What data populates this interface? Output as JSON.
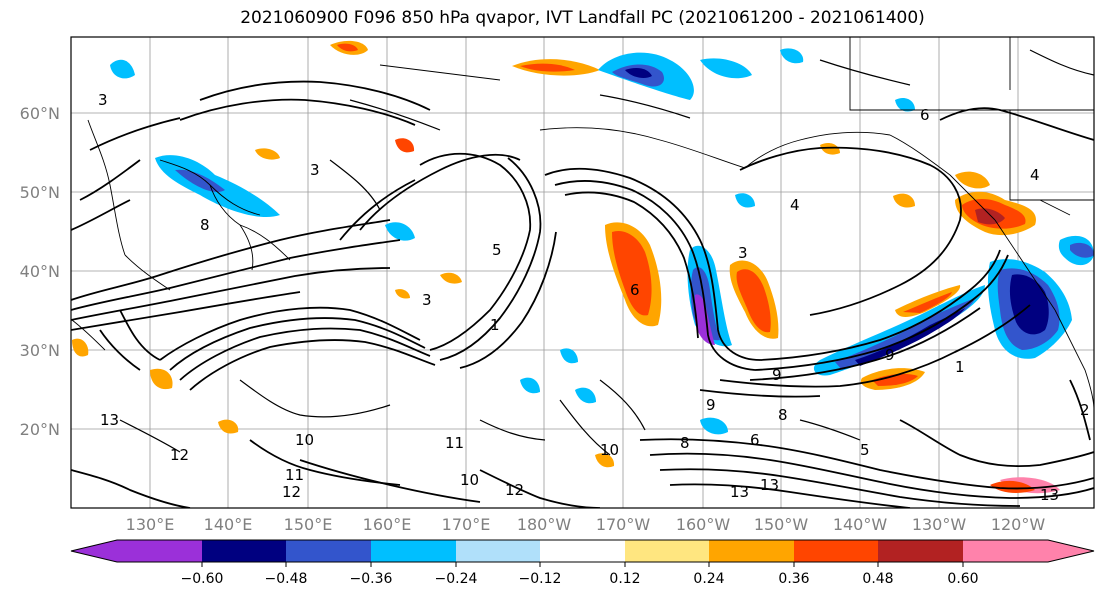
{
  "title": "2021060900 F096 850 hPa qvapor, IVT Landfall PC (2021061200 - 2021061400)",
  "lat_labels": [
    "60°N",
    "50°N",
    "40°N",
    "30°N",
    "20°N"
  ],
  "lon_labels": [
    "130°E",
    "140°E",
    "150°E",
    "160°E",
    "170°E",
    "180°W",
    "170°W",
    "160°W",
    "150°W",
    "140°W",
    "130°W",
    "120°W"
  ],
  "colorbar": {
    "tick_labels": [
      "−0.60",
      "−0.48",
      "−0.36",
      "−0.24",
      "−0.12",
      "0.12",
      "0.24",
      "0.36",
      "0.48",
      "0.60"
    ],
    "colors": [
      "#9b30d9",
      "#000080",
      "#3355cc",
      "#00bfff",
      "#b0e0fa",
      "#ffffff",
      "#ffe680",
      "#ffa500",
      "#ff4500",
      "#b22222",
      "#ff82ab"
    ]
  },
  "contour_labels": [
    "3",
    "3",
    "3",
    "5",
    "6",
    "1",
    "8",
    "4",
    "3",
    "9",
    "9",
    "8",
    "9",
    "12",
    "13",
    "10",
    "11",
    "10",
    "12",
    "11",
    "13",
    "13",
    "13",
    "12",
    "10",
    "8",
    "6",
    "5",
    "1",
    "2",
    "4",
    "6"
  ]
}
